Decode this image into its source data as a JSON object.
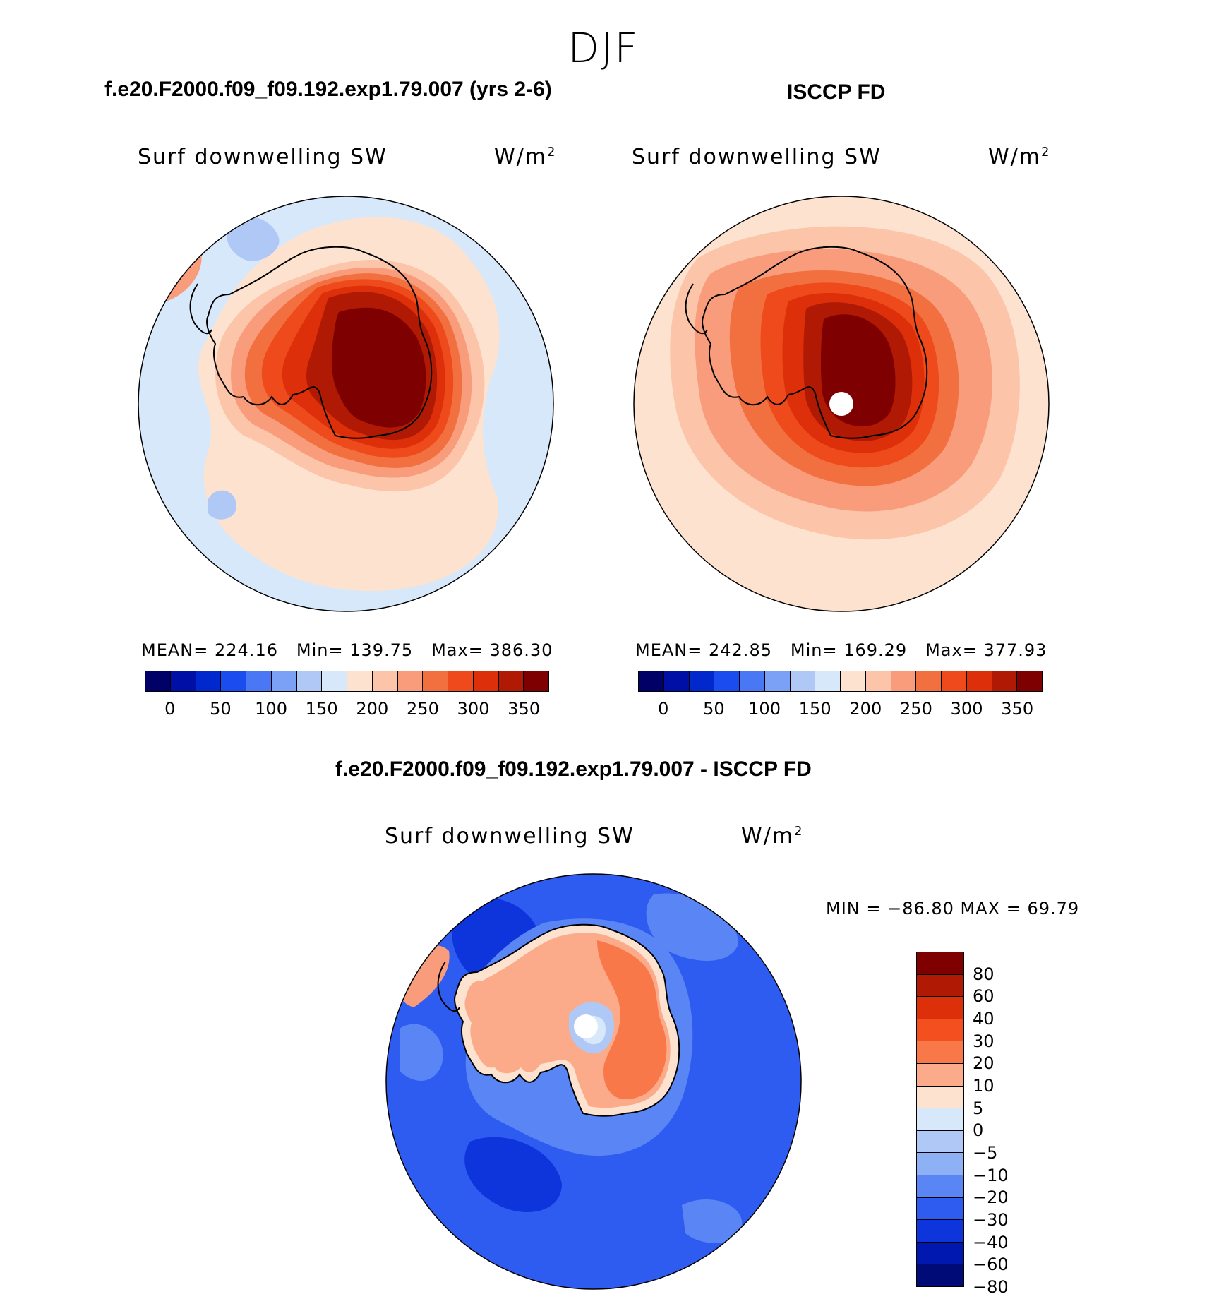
{
  "season": "DJF",
  "panels": [
    {
      "case_title": "f.e20.F2000.f09_f09.192.exp1.79.007 (yrs 2-6)",
      "variable": "Surf downwelling SW",
      "units_base": "W/m",
      "units_exp": "2",
      "stats": {
        "mean_label": "MEAN=",
        "mean": "224.16",
        "min_label": "Min=",
        "min": "139.75",
        "max_label": "Max=",
        "max": "386.30"
      }
    },
    {
      "case_title": "ISCCP FD",
      "variable": "Surf downwelling SW",
      "units_base": "W/m",
      "units_exp": "2",
      "stats": {
        "mean_label": "MEAN=",
        "mean": "242.85",
        "min_label": "Min=",
        "min": "169.29",
        "max_label": "Max=",
        "max": "377.93"
      }
    },
    {
      "case_title": "f.e20.F2000.f09_f09.192.exp1.79.007 - ISCCP FD",
      "variable": "Surf downwelling SW",
      "units_base": "W/m",
      "units_exp": "2",
      "stats_text": "MIN = −86.80 MAX =   69.79"
    }
  ],
  "absolute_colorbar": {
    "colors": [
      "#000066",
      "#0010a6",
      "#0028cc",
      "#1a4cf0",
      "#4a78f5",
      "#7aa1f5",
      "#b0c8f5",
      "#d6e8fa",
      "#fde3cf",
      "#fcc5aa",
      "#f89c7c",
      "#f2703f",
      "#ee4a1c",
      "#dc2f0a",
      "#b01a04",
      "#7e0000"
    ],
    "tick_labels": [
      "0",
      "50",
      "100",
      "150",
      "200",
      "250",
      "300",
      "350"
    ]
  },
  "difference_colorbar": {
    "colors": [
      "#7e0000",
      "#b01a04",
      "#dc2f0a",
      "#f44f1f",
      "#f8784a",
      "#fbab8a",
      "#fde3cf",
      "#d6e8fa",
      "#b0c8f5",
      "#8eb0f5",
      "#5a86f5",
      "#2e5cf0",
      "#0e34dc",
      "#0018b0",
      "#000b78"
    ],
    "labels": [
      "80",
      "60",
      "40",
      "30",
      "20",
      "10",
      "5",
      "0",
      "−5",
      "−10",
      "−20",
      "−30",
      "−40",
      "−60",
      "−80"
    ]
  },
  "map_colors": {
    "ocean_light": "#d6e8fa",
    "ocean_mid": "#b0c8f5",
    "ocean_peach": "#fde3cf",
    "ring1": "#fcc5aa",
    "ring2": "#f89c7c",
    "ring3": "#f2703f",
    "ring4": "#ee4a1c",
    "ring5": "#dc2f0a",
    "ring6": "#b01a04",
    "core": "#7e0000",
    "diff_ocean": "#2e5cf0",
    "diff_ocean_light": "#5a86f5",
    "diff_ocean_dark": "#0e34dc",
    "diff_land": "#f8784a",
    "diff_land_light": "#fbab8a",
    "diff_coast": "#fde3cf"
  }
}
